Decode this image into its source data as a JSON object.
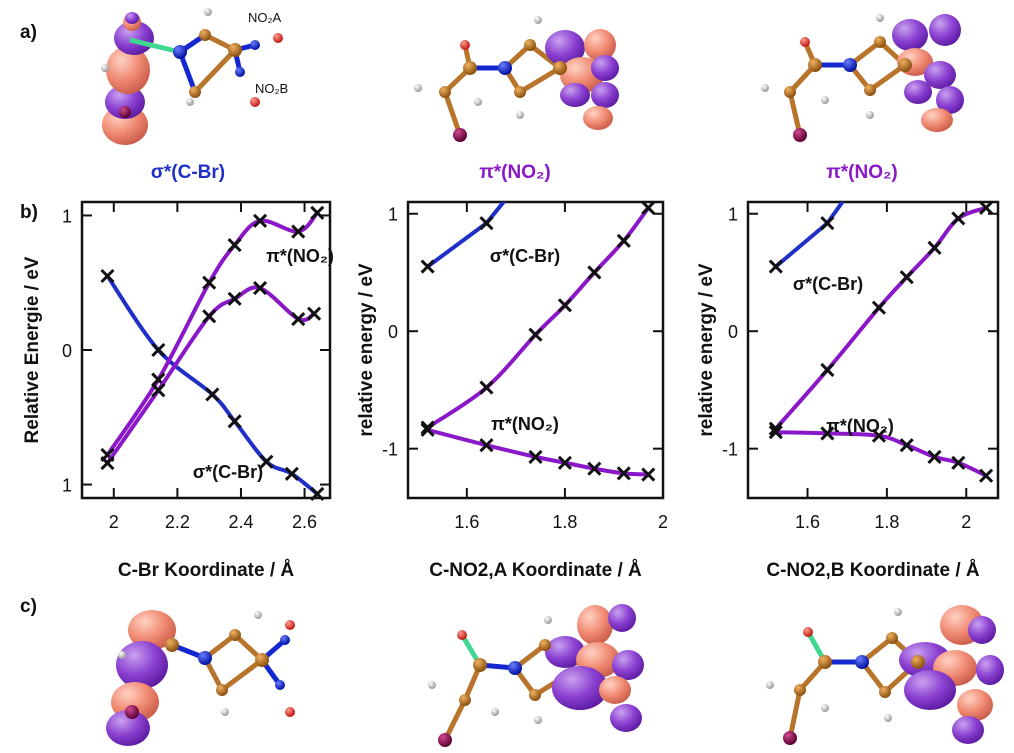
{
  "panel_labels": {
    "a": "a)",
    "b": "b)",
    "c": "c)"
  },
  "orbital_labels": {
    "sigma_cbr": "σ*(C-Br)",
    "pi_no2_1": "π*(NO₂)",
    "pi_no2_2": "π*(NO₂)"
  },
  "molecule_labels": {
    "no2a": "NO₂A",
    "no2b": "NO₂B"
  },
  "colors": {
    "blue_curve": "#1f2fc8",
    "purple_curve": "#8a17c8",
    "marker": "#111111",
    "orbital_purple": "#8a3fd0",
    "orbital_salmon": "#f08a72",
    "carbon": "#b8742a",
    "nitrogen": "#1428d0",
    "oxygen": "#e8403a",
    "bromine": "#8a1050",
    "hydrogen": "#d8d8d8",
    "bond_green": "#40d890"
  },
  "chart_data": [
    {
      "type": "line",
      "xlabel": "C-Br Koordinate / Å",
      "ylabel": "Relative Energie / eV",
      "xlim": [
        1.9,
        2.68
      ],
      "ylim": [
        -1.1,
        1.1
      ],
      "xticks": [
        "2",
        "2.2",
        "2.4",
        "2.6"
      ],
      "yticks": [
        "1",
        "0",
        "1"
      ],
      "annotations": [
        "π*(NO₂)",
        "σ*(C-Br)"
      ],
      "series": [
        {
          "name": "σ*(C-Br)",
          "color": "blue",
          "x": [
            1.98,
            2.14,
            2.31,
            2.38,
            2.48,
            2.56,
            2.64
          ],
          "y": [
            0.55,
            0.0,
            -0.33,
            -0.53,
            -0.83,
            -0.92,
            -1.07
          ]
        },
        {
          "name": "π*(NO₂)",
          "color": "purple",
          "x": [
            1.98,
            2.14,
            2.3,
            2.38,
            2.46,
            2.58,
            2.64
          ],
          "y": [
            -0.78,
            -0.22,
            0.5,
            0.78,
            0.96,
            0.88,
            1.02
          ]
        },
        {
          "name": "π*(NO₂)",
          "color": "purple",
          "x": [
            1.98,
            2.14,
            2.3,
            2.38,
            2.46,
            2.58,
            2.63
          ],
          "y": [
            -0.84,
            -0.3,
            0.25,
            0.38,
            0.46,
            0.23,
            0.27
          ]
        }
      ]
    },
    {
      "type": "line",
      "xlabel": "C-NO2,A Koordinate / Å",
      "ylabel": "relative energy / eV",
      "xlim": [
        1.48,
        2.0
      ],
      "ylim": [
        -1.42,
        1.1
      ],
      "xticks": [
        "1.6",
        "1.8",
        "2"
      ],
      "yticks": [
        "1",
        "0",
        "-1"
      ],
      "annotations": [
        "σ*(C-Br)",
        "π*(NO₂)"
      ],
      "series": [
        {
          "name": "σ*(C-Br)",
          "color": "blue",
          "x": [
            1.52,
            1.64
          ],
          "y": [
            0.55,
            0.92
          ]
        },
        {
          "name": "π*(NO₂)",
          "color": "purple",
          "x": [
            1.52,
            1.64,
            1.74,
            1.8,
            1.86,
            1.92,
            1.97
          ],
          "y": [
            -0.82,
            -0.48,
            -0.03,
            0.22,
            0.5,
            0.77,
            1.05
          ]
        },
        {
          "name": "π*(NO₂)",
          "color": "purple",
          "x": [
            1.52,
            1.64,
            1.74,
            1.8,
            1.86,
            1.92,
            1.97
          ],
          "y": [
            -0.84,
            -0.97,
            -1.07,
            -1.12,
            -1.17,
            -1.21,
            -1.22
          ]
        }
      ]
    },
    {
      "type": "line",
      "xlabel": "C-NO2,B Koordinate / Å",
      "ylabel": "relative energy / eV",
      "xlim": [
        1.45,
        2.08
      ],
      "ylim": [
        -1.42,
        1.1
      ],
      "xticks": [
        "1.6",
        "1.8",
        "2"
      ],
      "yticks": [
        "1",
        "0",
        "-1"
      ],
      "annotations": [
        "σ*(C-Br)",
        "π*(NO₂)"
      ],
      "series": [
        {
          "name": "σ*(C-Br)",
          "color": "blue",
          "x": [
            1.52,
            1.65
          ],
          "y": [
            0.55,
            0.92
          ]
        },
        {
          "name": "π*(NO₂)",
          "color": "purple",
          "x": [
            1.52,
            1.65,
            1.78,
            1.85,
            1.92,
            1.98,
            2.05
          ],
          "y": [
            -0.83,
            -0.33,
            0.2,
            0.46,
            0.71,
            0.96,
            1.05
          ]
        },
        {
          "name": "π*(NO₂)",
          "color": "purple",
          "x": [
            1.52,
            1.65,
            1.78,
            1.85,
            1.92,
            1.98,
            2.05
          ],
          "y": [
            -0.86,
            -0.87,
            -0.89,
            -0.97,
            -1.07,
            -1.12,
            -1.23
          ]
        }
      ]
    }
  ]
}
